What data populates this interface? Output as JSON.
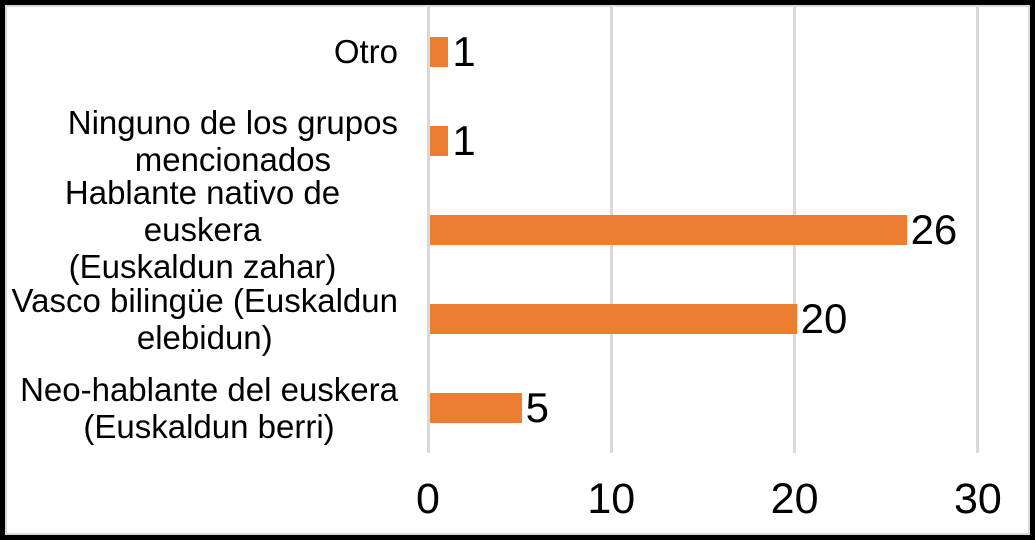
{
  "chart_data": {
    "type": "bar",
    "orientation": "horizontal",
    "title": "",
    "xlabel": "",
    "ylabel": "",
    "categories": [
      "Otro",
      "Ninguno de los grupos mencionados",
      "Hablante nativo de euskera (Euskaldun zahar)",
      "Vasco bilingüe (Euskaldun elebidun)",
      "Neo-hablante del euskera (Euskaldun berri)"
    ],
    "values": [
      1,
      1,
      26,
      20,
      5
    ],
    "rows": [
      {
        "label": "Otro",
        "label_lines": [
          "Otro"
        ],
        "value": 1,
        "data_label": "1"
      },
      {
        "label": "Ninguno de los grupos mencionados",
        "label_lines": [
          "Ninguno de los grupos",
          "mencionados"
        ],
        "value": 1,
        "data_label": "1"
      },
      {
        "label": "Hablante nativo de euskera (Euskaldun zahar)",
        "label_lines": [
          "Hablante nativo de euskera",
          "(Euskaldun zahar)"
        ],
        "value": 26,
        "data_label": "26"
      },
      {
        "label": "Vasco bilingüe (Euskaldun elebidun)",
        "label_lines": [
          "Vasco bilingüe (Euskaldun",
          "elebidun)"
        ],
        "value": 20,
        "data_label": "20"
      },
      {
        "label": "Neo-hablante del euskera (Euskaldun berri)",
        "label_lines": [
          "Neo-hablante del euskera",
          "(Euskaldun berri)"
        ],
        "value": 5,
        "data_label": "5"
      }
    ],
    "x_ticks": [
      "0",
      "10",
      "20",
      "30"
    ],
    "x_tick_values": [
      0,
      10,
      20,
      30
    ],
    "xlim": [
      0,
      32.7
    ],
    "grid": true,
    "legend": false,
    "data_labels_shown": true,
    "colors": {
      "bar": "#ED7D31",
      "gridline": "#D9D9D9",
      "text": "#000000",
      "chart_border": "#D9D9D9",
      "outer_border": "#000000",
      "background": "#FFFFFF"
    }
  }
}
